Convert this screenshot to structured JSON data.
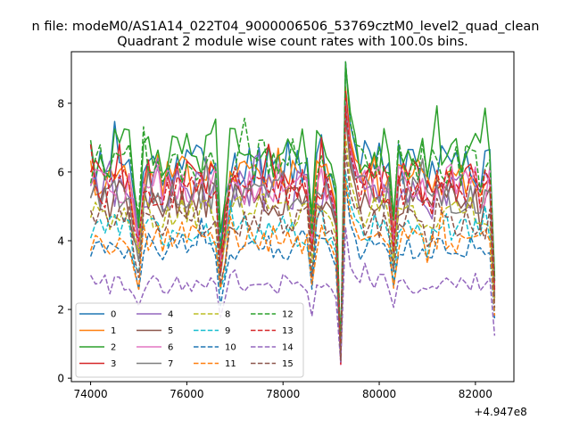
{
  "chart_data": {
    "type": "line",
    "suptitle": "n file: modeM0/AS1A14_022T04_9000006506_53769cztM0_level2_quad_clean",
    "title": "Quadrant 2 module wise count rates with 100.0s bins.",
    "xlabel": "",
    "ylabel": "",
    "x_offset_label": "+4.947e8",
    "xlim": [
      73600,
      82800
    ],
    "ylim": [
      -0.1,
      9.5
    ],
    "x_ticks": [
      {
        "value": 74000,
        "label": "74000"
      },
      {
        "value": 76000,
        "label": "76000"
      },
      {
        "value": 78000,
        "label": "78000"
      },
      {
        "value": 80000,
        "label": "80000"
      },
      {
        "value": 82000,
        "label": "82000"
      }
    ],
    "y_ticks": [
      {
        "value": 0,
        "label": "0"
      },
      {
        "value": 2,
        "label": "2"
      },
      {
        "value": 4,
        "label": "4"
      },
      {
        "value": 6,
        "label": "6"
      },
      {
        "value": 8,
        "label": "8"
      }
    ],
    "legend": "lower-left, 4 columns",
    "x_start": 74000,
    "x_step": 100,
    "series": [
      {
        "name": "0",
        "color": "#1f77b4",
        "dash": "solid",
        "base": 6.25
      },
      {
        "name": "1",
        "color": "#ff7f0e",
        "dash": "solid",
        "base": 5.9
      },
      {
        "name": "2",
        "color": "#2ca02c",
        "dash": "solid",
        "base": 6.55
      },
      {
        "name": "3",
        "color": "#d62728",
        "dash": "solid",
        "base": 5.75
      },
      {
        "name": "4",
        "color": "#9467bd",
        "dash": "solid",
        "base": 5.45
      },
      {
        "name": "5",
        "color": "#8c564b",
        "dash": "solid",
        "base": 5.2
      },
      {
        "name": "6",
        "color": "#e377c2",
        "dash": "solid",
        "base": 5.65
      },
      {
        "name": "7",
        "color": "#7f7f7f",
        "dash": "solid",
        "base": 5.35
      },
      {
        "name": "8",
        "color": "#bcbd22",
        "dash": "dashed",
        "base": 4.85
      },
      {
        "name": "9",
        "color": "#17becf",
        "dash": "dashed",
        "base": 4.3
      },
      {
        "name": "10",
        "color": "#1f77b4",
        "dash": "dashed",
        "base": 3.8
      },
      {
        "name": "11",
        "color": "#ff7f0e",
        "dash": "dashed",
        "base": 4.05
      },
      {
        "name": "12",
        "color": "#2ca02c",
        "dash": "dashed",
        "base": 6.3
      },
      {
        "name": "13",
        "color": "#d62728",
        "dash": "dashed",
        "base": 5.55
      },
      {
        "name": "14",
        "color": "#9467bd",
        "dash": "dashed",
        "base": 2.75
      },
      {
        "name": "15",
        "color": "#8c564b",
        "dash": "dashed",
        "base": 4.55
      }
    ]
  }
}
